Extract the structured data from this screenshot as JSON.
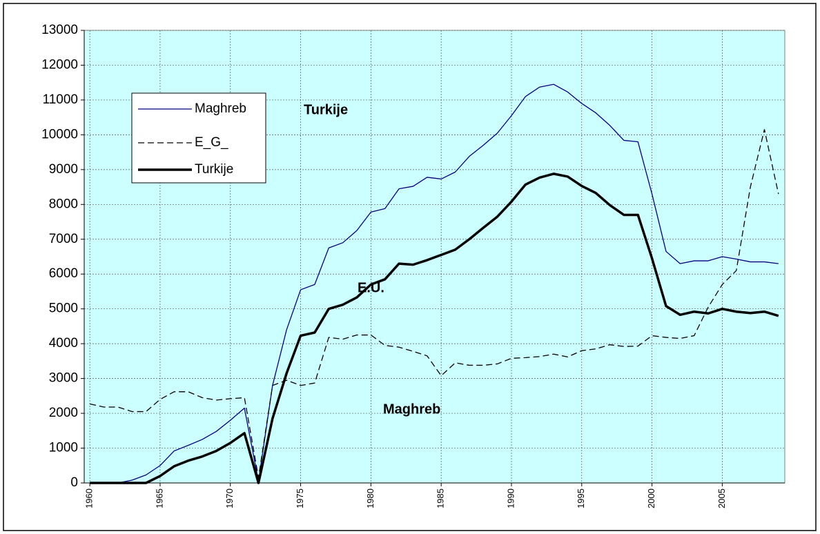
{
  "chart_data": {
    "type": "line",
    "x": [
      1960,
      1961,
      1962,
      1963,
      1964,
      1965,
      1966,
      1967,
      1968,
      1969,
      1970,
      1971,
      1972,
      1973,
      1974,
      1975,
      1976,
      1977,
      1978,
      1979,
      1980,
      1981,
      1982,
      1983,
      1984,
      1985,
      1986,
      1987,
      1988,
      1989,
      1990,
      1991,
      1992,
      1993,
      1994,
      1995,
      1996,
      1997,
      1998,
      1999,
      2000,
      2001,
      2002,
      2003,
      2004,
      2005,
      2006,
      2007,
      2008,
      2009
    ],
    "series": [
      {
        "name": "Maghreb",
        "color": "#000080",
        "width": 1.3,
        "dashed": false,
        "values": [
          0,
          0,
          0,
          80,
          230,
          500,
          920,
          1080,
          1250,
          1480,
          1800,
          2150,
          50,
          2800,
          4400,
          5550,
          5700,
          6750,
          6900,
          7250,
          7780,
          7880,
          8450,
          8520,
          8780,
          8730,
          8930,
          9380,
          9700,
          10050,
          10550,
          11100,
          11370,
          11450,
          11230,
          10900,
          10630,
          10270,
          9840,
          9800,
          8300,
          6650,
          6300,
          6380,
          6380,
          6500,
          6430,
          6350,
          6350,
          6300
        ]
      },
      {
        "name": "E_G_",
        "color": "#000000",
        "width": 1.3,
        "dashed": true,
        "values": [
          2270,
          2180,
          2180,
          2050,
          2050,
          2400,
          2620,
          2620,
          2450,
          2380,
          2420,
          2450,
          150,
          2800,
          2950,
          2800,
          2870,
          4180,
          4130,
          4250,
          4250,
          3950,
          3900,
          3780,
          3650,
          3080,
          3450,
          3380,
          3380,
          3420,
          3580,
          3600,
          3630,
          3700,
          3620,
          3800,
          3850,
          3970,
          3920,
          3930,
          4230,
          4180,
          4150,
          4230,
          5050,
          5700,
          6100,
          8500,
          10150,
          8300
        ]
      },
      {
        "name": "Turkije",
        "color": "#000000",
        "width": 3.5,
        "dashed": false,
        "values": [
          0,
          0,
          0,
          0,
          0,
          200,
          480,
          640,
          760,
          920,
          1150,
          1430,
          0,
          1850,
          3150,
          4230,
          4320,
          5000,
          5120,
          5330,
          5700,
          5850,
          6300,
          6270,
          6400,
          6550,
          6700,
          7000,
          7330,
          7650,
          8080,
          8570,
          8770,
          8880,
          8800,
          8530,
          8330,
          7980,
          7700,
          7700,
          6450,
          5080,
          4830,
          4920,
          4870,
          5000,
          4920,
          4880,
          4920,
          4800
        ]
      }
    ],
    "annotations": [
      "Turkije",
      "E.U.",
      "Maghreb"
    ],
    "xlim": [
      1959.6,
      2009.45
    ],
    "xticks": [
      1960,
      1965,
      1970,
      1975,
      1980,
      1985,
      1990,
      1995,
      2000,
      2005
    ],
    "ylim": [
      0,
      13000
    ],
    "yticks": [
      0,
      1000,
      2000,
      3000,
      4000,
      5000,
      6000,
      7000,
      8000,
      9000,
      10000,
      11000,
      12000,
      13000
    ],
    "grid": true,
    "plot_background": "#ccffff",
    "legend": "upper-left"
  }
}
